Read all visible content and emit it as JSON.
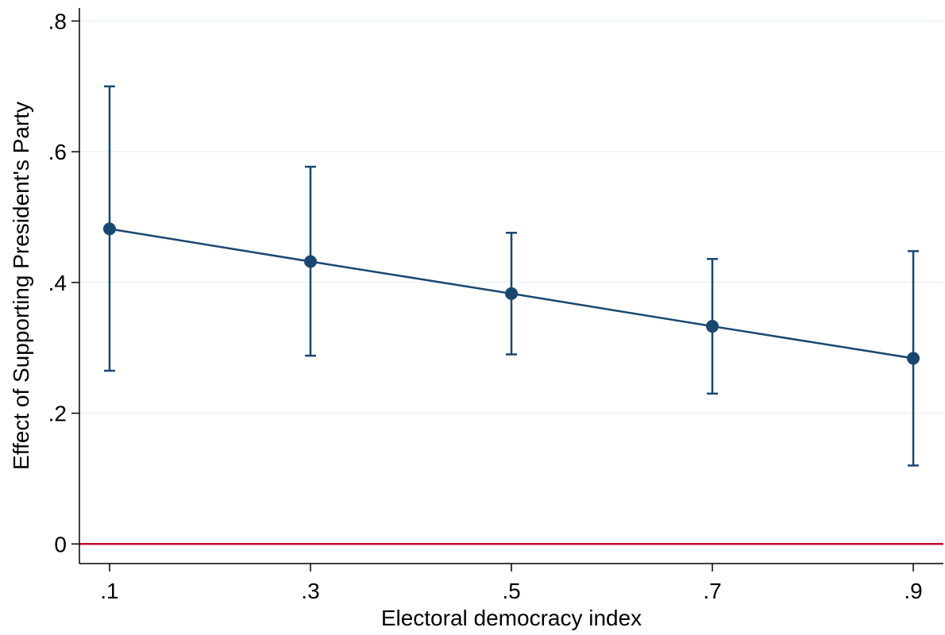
{
  "chart_data": {
    "type": "line",
    "title": "",
    "xlabel": "Electoral democracy index",
    "ylabel": "Effect of Supporting President's Party",
    "x": [
      0.1,
      0.3,
      0.5,
      0.7,
      0.9
    ],
    "series": [
      {
        "values": [
          0.482,
          0.432,
          0.383,
          0.333,
          0.284
        ],
        "ci_lower": [
          0.265,
          0.288,
          0.29,
          0.23,
          0.12
        ],
        "ci_upper": [
          0.7,
          0.577,
          0.476,
          0.436,
          0.448
        ],
        "color": "#1a476f"
      }
    ],
    "reference_line": {
      "y": 0,
      "color": "#c10534"
    },
    "xlim": [
      0.07,
      0.93
    ],
    "ylim": [
      -0.03,
      0.82
    ],
    "x_ticks": [
      0.1,
      0.3,
      0.5,
      0.7,
      0.9
    ],
    "x_tick_labels": [
      ".1",
      ".3",
      ".5",
      ".7",
      ".9"
    ],
    "y_ticks": [
      0,
      0.2,
      0.4,
      0.6,
      0.8
    ],
    "y_tick_labels": [
      "0",
      ".2",
      ".4",
      ".6",
      ".8"
    ],
    "grid": true,
    "grid_color": "#eaf2f3",
    "legend": "none"
  }
}
